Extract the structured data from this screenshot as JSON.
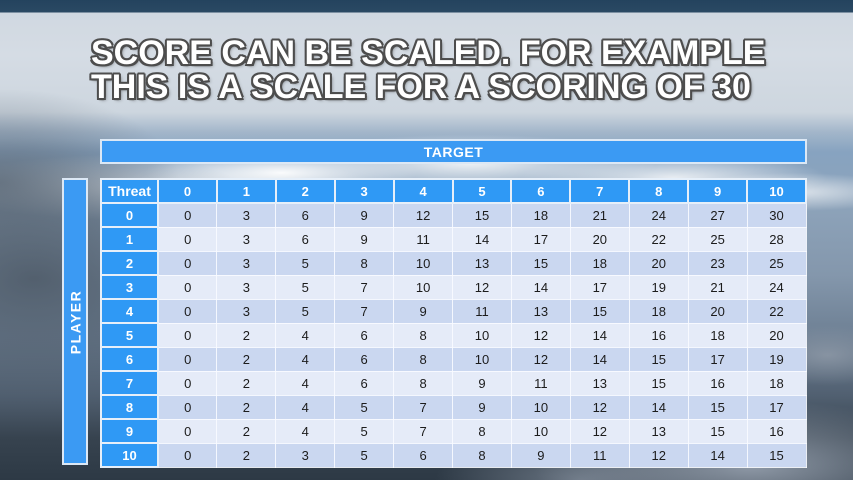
{
  "slide": {
    "title_line1": "SCORE CAN BE SCALED. FOR EXAMPLE",
    "title_line2": "THIS IS A SCALE FOR A SCORING OF 30"
  },
  "table": {
    "target_label": "TARGET",
    "player_label": "PLAYER",
    "corner_label": "Threat",
    "column_headers": [
      "0",
      "1",
      "2",
      "3",
      "4",
      "5",
      "6",
      "7",
      "8",
      "9",
      "10"
    ],
    "rows": [
      {
        "label": "0",
        "values": [
          0,
          3,
          6,
          9,
          12,
          15,
          18,
          21,
          24,
          27,
          30
        ]
      },
      {
        "label": "1",
        "values": [
          0,
          3,
          6,
          9,
          11,
          14,
          17,
          20,
          22,
          25,
          28
        ]
      },
      {
        "label": "2",
        "values": [
          0,
          3,
          5,
          8,
          10,
          13,
          15,
          18,
          20,
          23,
          25
        ]
      },
      {
        "label": "3",
        "values": [
          0,
          3,
          5,
          7,
          10,
          12,
          14,
          17,
          19,
          21,
          24
        ]
      },
      {
        "label": "4",
        "values": [
          0,
          3,
          5,
          7,
          9,
          11,
          13,
          15,
          18,
          20,
          22
        ]
      },
      {
        "label": "5",
        "values": [
          0,
          2,
          4,
          6,
          8,
          10,
          12,
          14,
          16,
          18,
          20
        ]
      },
      {
        "label": "6",
        "values": [
          0,
          2,
          4,
          6,
          8,
          10,
          12,
          14,
          15,
          17,
          19
        ]
      },
      {
        "label": "7",
        "values": [
          0,
          2,
          4,
          6,
          8,
          9,
          11,
          13,
          15,
          16,
          18
        ]
      },
      {
        "label": "8",
        "values": [
          0,
          2,
          4,
          5,
          7,
          9,
          10,
          12,
          14,
          15,
          17
        ]
      },
      {
        "label": "9",
        "values": [
          0,
          2,
          4,
          5,
          7,
          8,
          10,
          12,
          13,
          15,
          16
        ]
      },
      {
        "label": "10",
        "values": [
          0,
          2,
          3,
          5,
          6,
          8,
          9,
          11,
          12,
          14,
          15
        ]
      }
    ]
  },
  "colors": {
    "header_blue": "#3B9AF3",
    "header_border": "#DCE8F5",
    "row_even": "#CAD7F0",
    "row_odd": "#E5EBF8",
    "cell_text": "#1C1C1C",
    "title_fill": "#FFFFFF",
    "title_outline": "#4D4D4D",
    "sky_top": "#24435E",
    "sky_bottom": "#2D3945"
  }
}
